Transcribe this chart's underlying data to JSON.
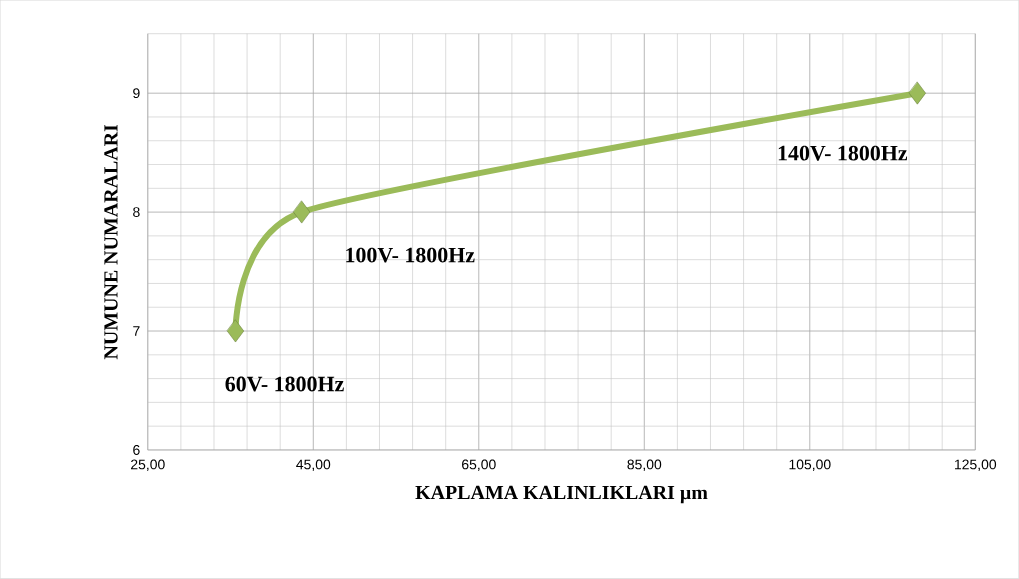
{
  "chart_data": {
    "type": "line",
    "xlabel": "KAPLAMA KALINLIKLARI µm",
    "ylabel": "NUMUNE NUMARALARI",
    "x": [
      35.6,
      43.6,
      118
    ],
    "series": [
      {
        "color": "#9bbb59",
        "values": [
          7,
          8,
          9
        ]
      }
    ],
    "marker": "diamond",
    "line_style": "solid",
    "grid": true,
    "xlim": [
      25,
      125
    ],
    "xticks": [
      {
        "value": 25,
        "label": "25,00"
      },
      {
        "value": 45,
        "label": "45,00"
      },
      {
        "value": 65,
        "label": "65,00"
      },
      {
        "value": 85,
        "label": "85,00"
      },
      {
        "value": 105,
        "label": "105,00"
      },
      {
        "value": 125,
        "label": "125,00"
      }
    ],
    "ylim": [
      6,
      9.5
    ],
    "yticks": [
      6,
      7,
      8,
      9
    ],
    "annotations": [
      {
        "text": "60V- 1800Hz",
        "x": 35.6,
        "y": 7
      },
      {
        "text": "100V- 1800Hz",
        "x": 43.6,
        "y": 8
      },
      {
        "text": "140V- 1800Hz",
        "x": 118,
        "y": 9
      }
    ]
  }
}
